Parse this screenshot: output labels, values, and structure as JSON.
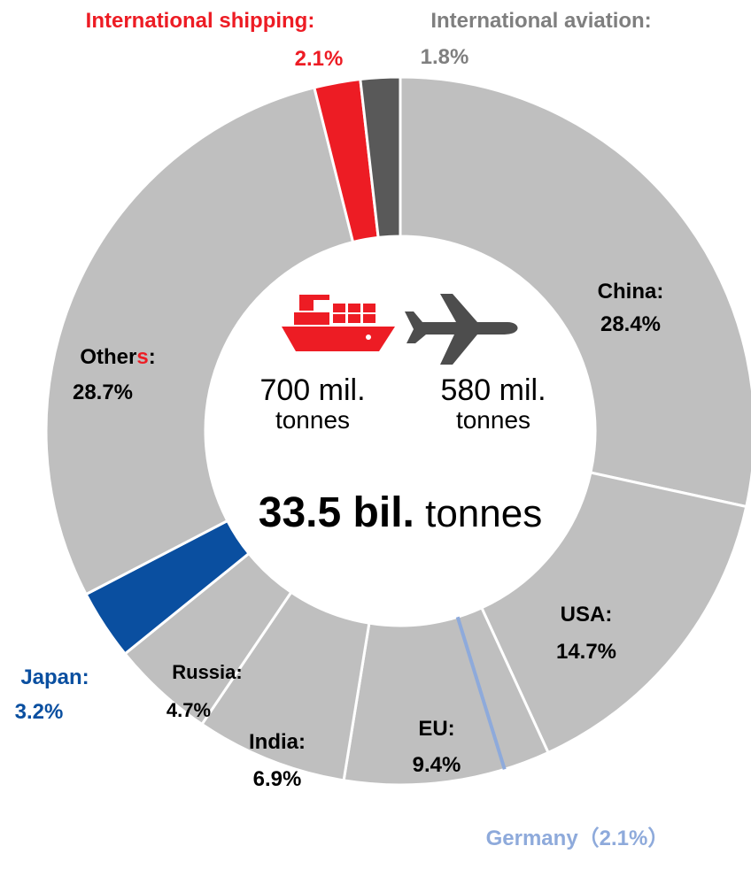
{
  "chart_data": {
    "type": "donut",
    "segments": [
      {
        "name": "China",
        "value": 28.4,
        "label": "China:",
        "value_label": "28.4%",
        "color": "#bfbfbf"
      },
      {
        "name": "USA",
        "value": 14.7,
        "label": "USA:",
        "value_label": "14.7%",
        "color": "#bfbfbf"
      },
      {
        "name": "EU",
        "value": 9.4,
        "label": "EU:",
        "value_label": "9.4%",
        "color": "#bfbfbf"
      },
      {
        "name": "India",
        "value": 6.9,
        "label": "India:",
        "value_label": "6.9%",
        "color": "#bfbfbf"
      },
      {
        "name": "Russia",
        "value": 4.7,
        "label": "Russia:",
        "value_label": "4.7%",
        "color": "#bfbfbf"
      },
      {
        "name": "Japan",
        "value": 3.2,
        "label": "Japan:",
        "value_label": "3.2%",
        "color": "#0a4fa0"
      },
      {
        "name": "Others",
        "value": 28.7,
        "label_main": "Other",
        "label_accent": "s",
        "label_end": ":",
        "value_label": "28.7%",
        "color": "#bfbfbf"
      },
      {
        "name": "International shipping",
        "value": 2.1,
        "label": "International shipping:",
        "value_label": "2.1%",
        "color": "#ed1c24"
      },
      {
        "name": "International aviation",
        "value": 1.8,
        "label": "International aviation:",
        "value_label": "1.8%",
        "color": "#595959"
      }
    ],
    "sub_annotation": {
      "label": "Germany（2.1%）",
      "value": 2.1,
      "within": "EU",
      "color": "#8eaadb"
    },
    "center": {
      "shipping": {
        "amount": "700 mil.",
        "unit": "tonnes",
        "icon": "ship-icon"
      },
      "aviation": {
        "amount": "580 mil.",
        "unit": "tonnes",
        "icon": "airplane-icon"
      },
      "total_bold": "33.5 bil.",
      "total_unit": "tonnes"
    },
    "colors": {
      "accent_red": "#ed1c24",
      "japan_blue": "#0a4fa0",
      "germany_blue": "#8eaadb",
      "aviation_gray": "#595959",
      "slice_gray": "#bfbfbf"
    }
  }
}
